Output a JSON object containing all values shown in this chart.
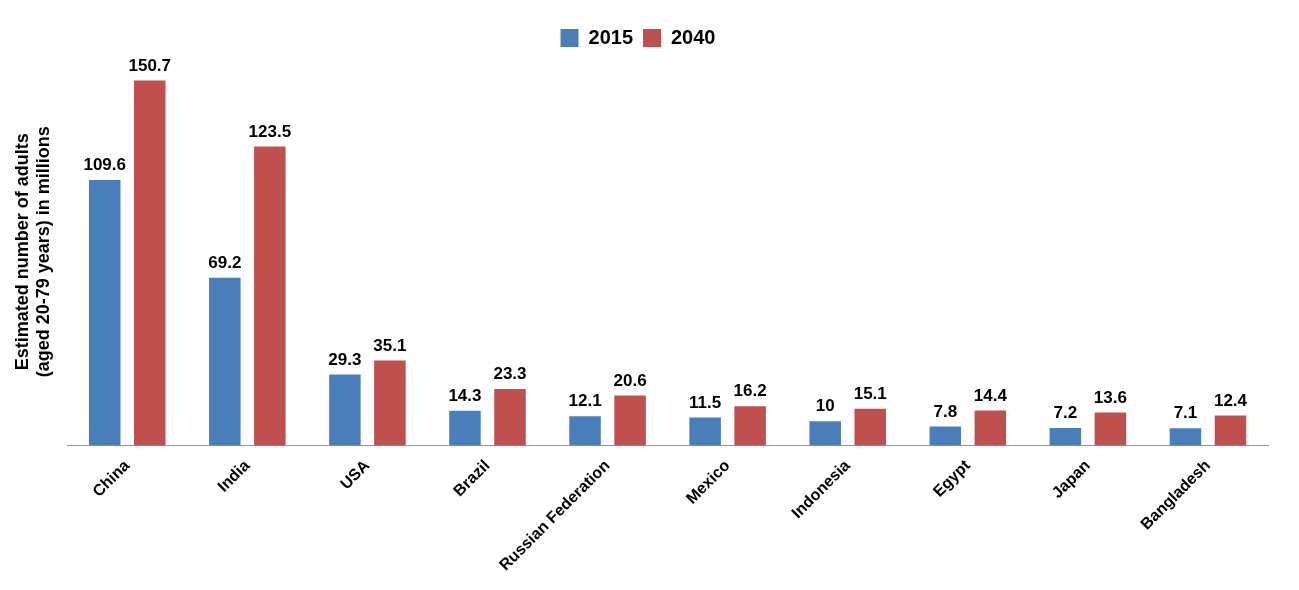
{
  "chart_data": {
    "type": "bar",
    "ylabel": "Estimated number of adults\n(aged 20-79 years) in millions",
    "categories": [
      "China",
      "India",
      "USA",
      "Brazil",
      "Russian Federation",
      "Mexico",
      "Indonesia",
      "Egypt",
      "Japan",
      "Bangladesh"
    ],
    "series": [
      {
        "name": "2015",
        "color": "#4a7ebb",
        "values": [
          109.6,
          69.2,
          29.3,
          14.3,
          12.1,
          11.5,
          10,
          7.8,
          7.2,
          7.1
        ]
      },
      {
        "name": "2040",
        "color": "#c0504d",
        "values": [
          150.7,
          123.5,
          35.1,
          23.3,
          20.6,
          16.2,
          15.1,
          14.4,
          13.6,
          12.4
        ]
      }
    ],
    "data_labels": true,
    "legend": "top",
    "grid": false
  }
}
